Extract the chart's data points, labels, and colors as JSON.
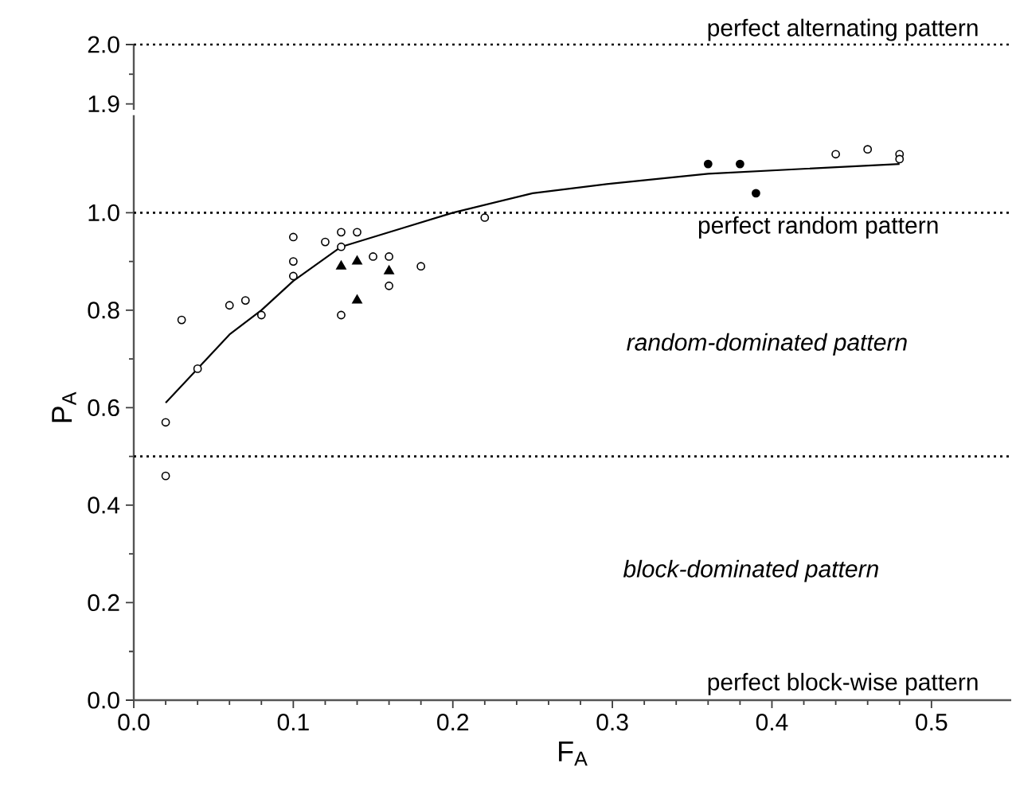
{
  "chart_data": [
    {
      "xlim": [
        0,
        0.55
      ],
      "ylim": [
        1.89,
        2.0
      ],
      "type": "scatter",
      "yticks": [
        1.9,
        {
          "value": 2.0,
          "label": "2.0"
        }
      ],
      "tick_labels": "y",
      "ref_lines": [
        {
          "axis": "y",
          "value": 2.0,
          "label": "perfect alternating pattern",
          "line_style": "dotted",
          "color": "#000000"
        }
      ]
    },
    {
      "type": "scatter",
      "xlabel": "F$_{A}$",
      "ylabel": "P$_{A}$",
      "xlim": [
        0,
        0.55
      ],
      "ylim": [
        0,
        1.2
      ],
      "xticks": [
        {
          "value": 0,
          "label": "0.0"
        },
        0.1,
        0.2,
        0.3,
        0.4,
        0.5
      ],
      "yticks": [
        {
          "value": 0,
          "label": "0.0"
        },
        0.2,
        0.4,
        0.6,
        0.8,
        {
          "value": 1.0,
          "label": "1.0"
        }
      ],
      "series": [
        {
          "marker": "circle",
          "color": "#ffffff",
          "x": [
            0.02,
            0.02,
            0.03,
            0.04,
            0.06,
            0.07,
            0.08,
            0.1,
            0.1,
            0.1,
            0.12,
            0.13,
            0.13,
            0.13,
            0.14,
            0.15,
            0.16,
            0.16,
            0.18,
            0.22,
            0.44,
            0.46,
            0.48,
            0.48
          ],
          "values": [
            0.57,
            0.46,
            0.78,
            0.68,
            0.81,
            0.82,
            0.79,
            0.95,
            0.9,
            0.87,
            0.94,
            0.96,
            0.93,
            0.79,
            0.96,
            0.91,
            0.91,
            0.85,
            0.89,
            0.99,
            1.12,
            1.13,
            1.12,
            1.11
          ]
        },
        {
          "marker": "triangle",
          "color": "#000000",
          "x": [
            0.13,
            0.14,
            0.14,
            0.16
          ],
          "values": [
            0.89,
            0.9,
            0.82,
            0.88
          ]
        },
        {
          "marker": "circle",
          "color": "#000000",
          "x": [
            0.36,
            0.38,
            0.39
          ],
          "values": [
            1.1,
            1.1,
            1.04
          ]
        },
        {
          "type": "line",
          "marker": "none",
          "line_style": "solid",
          "color": "#000000",
          "x": [
            0.02,
            0.04,
            0.06,
            0.08,
            0.1,
            0.13,
            0.15,
            0.17,
            0.2,
            0.25,
            0.3,
            0.36,
            0.42,
            0.48
          ],
          "values": [
            0.61,
            0.68,
            0.75,
            0.8,
            0.86,
            0.93,
            0.95,
            0.97,
            1.0,
            1.04,
            1.06,
            1.08,
            1.09,
            1.1
          ]
        }
      ],
      "ref_lines": [
        {
          "axis": "y",
          "value": 1.0,
          "label": "perfect random pattern",
          "line_style": "dotted",
          "color": "#000000"
        },
        {
          "axis": "y",
          "value": 0.5,
          "line_style": "dotted",
          "color": "#000000"
        }
      ],
      "annotations": [
        "random-dominated pattern",
        "block-dominated pattern",
        "perfect block-wise pattern"
      ]
    }
  ]
}
